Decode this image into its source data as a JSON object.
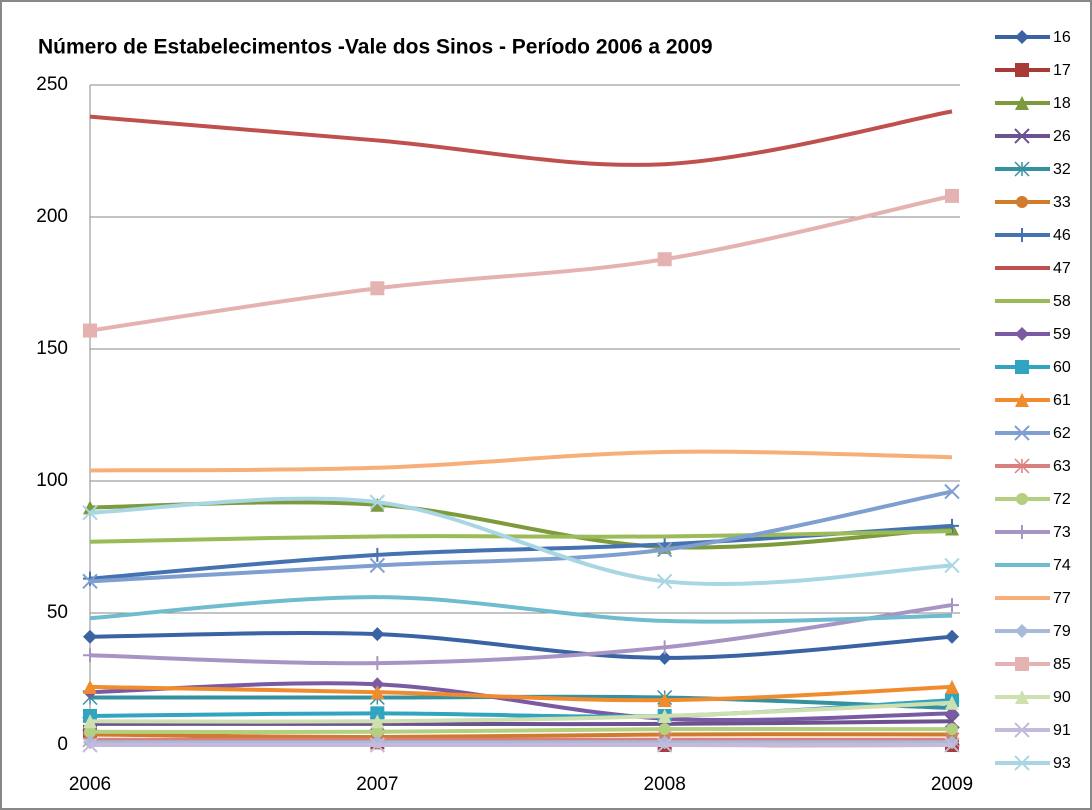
{
  "chart_data": {
    "type": "line",
    "title": "Número de Estabelecimentos  -Vale dos Sinos - Período 2006 a 2009",
    "categories": [
      "2006",
      "2007",
      "2008",
      "2009"
    ],
    "ylim": [
      0,
      250
    ],
    "yticks": [
      0,
      50,
      100,
      150,
      200,
      250
    ],
    "grid": true,
    "legend": "right",
    "smooth": true,
    "series": [
      {
        "name": "16",
        "color": "#3a63a3",
        "marker": "diamond",
        "values": [
          41,
          42,
          33,
          41
        ]
      },
      {
        "name": "17",
        "color": "#a83a38",
        "marker": "square",
        "values": [
          5,
          1,
          0,
          0
        ]
      },
      {
        "name": "18",
        "color": "#7d9a3c",
        "marker": "triangle",
        "values": [
          90,
          91,
          75,
          82
        ]
      },
      {
        "name": "26",
        "color": "#6c5290",
        "marker": "x",
        "values": [
          8,
          8,
          8,
          9
        ]
      },
      {
        "name": "32",
        "color": "#36919f",
        "marker": "star",
        "values": [
          18,
          18,
          18,
          14
        ]
      },
      {
        "name": "33",
        "color": "#d07b2e",
        "marker": "circle",
        "values": [
          4,
          3,
          4,
          4
        ]
      },
      {
        "name": "46",
        "color": "#4572b0",
        "marker": "plus",
        "values": [
          63,
          72,
          76,
          83
        ]
      },
      {
        "name": "47",
        "color": "#c0504d",
        "marker": "none",
        "values": [
          238,
          229,
          220,
          240
        ]
      },
      {
        "name": "58",
        "color": "#9bbb59",
        "marker": "none",
        "values": [
          77,
          79,
          79,
          81
        ]
      },
      {
        "name": "59",
        "color": "#7a5ba3",
        "marker": "diamond",
        "values": [
          20,
          23,
          10,
          12
        ]
      },
      {
        "name": "60",
        "color": "#31a4c0",
        "marker": "square",
        "values": [
          11,
          12,
          11,
          17
        ]
      },
      {
        "name": "61",
        "color": "#f08c2e",
        "marker": "triangle",
        "values": [
          22,
          20,
          17,
          22
        ]
      },
      {
        "name": "62",
        "color": "#7f9fd0",
        "marker": "x",
        "values": [
          62,
          68,
          74,
          96
        ]
      },
      {
        "name": "63",
        "color": "#d9807e",
        "marker": "star",
        "values": [
          2,
          2,
          2,
          2
        ]
      },
      {
        "name": "72",
        "color": "#b3cf80",
        "marker": "circle",
        "values": [
          5,
          5,
          6,
          6
        ]
      },
      {
        "name": "73",
        "color": "#a894c4",
        "marker": "plus",
        "values": [
          34,
          31,
          37,
          53
        ]
      },
      {
        "name": "74",
        "color": "#6fbccf",
        "marker": "none",
        "values": [
          48,
          56,
          47,
          49
        ]
      },
      {
        "name": "77",
        "color": "#f8ae78",
        "marker": "none",
        "values": [
          104,
          105,
          111,
          109
        ]
      },
      {
        "name": "79",
        "color": "#a9b9d9",
        "marker": "diamond",
        "values": [
          1,
          1,
          1,
          1
        ]
      },
      {
        "name": "85",
        "color": "#e3b2b1",
        "marker": "square",
        "values": [
          157,
          173,
          184,
          208
        ]
      },
      {
        "name": "90",
        "color": "#cfe0b0",
        "marker": "triangle",
        "values": [
          9,
          9,
          11,
          16
        ]
      },
      {
        "name": "91",
        "color": "#c5b9dc",
        "marker": "x",
        "values": [
          0,
          0,
          0,
          0
        ]
      },
      {
        "name": "93",
        "color": "#a9d6e3",
        "marker": "x",
        "values": [
          88,
          92,
          62,
          68
        ]
      }
    ]
  }
}
